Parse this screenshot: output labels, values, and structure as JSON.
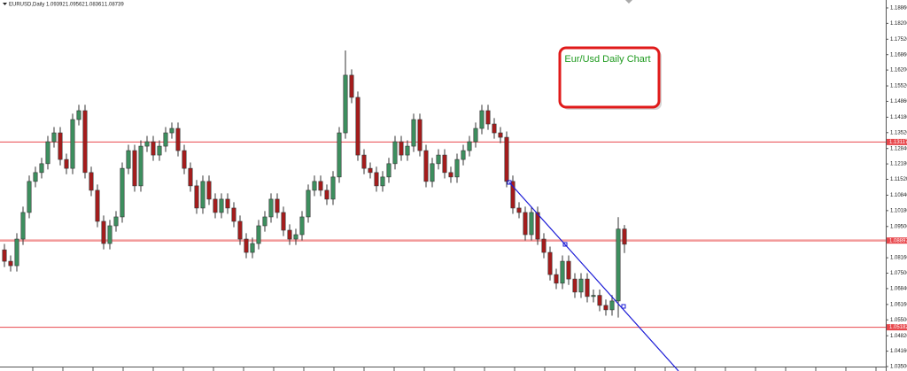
{
  "chart_data": {
    "type": "candlestick",
    "symbol": "EURUSD,Daily",
    "annotation": "Eur/Usd Daily Chart",
    "bull_color": "#3d8f5f",
    "bear_color": "#a51c1c",
    "ylim": [
      1.0331,
      1.192
    ],
    "yticks": [
      {
        "value": 1.1886,
        "label": "1.18860"
      },
      {
        "value": 1.182,
        "label": "1.18200"
      },
      {
        "value": 1.1752,
        "label": "1.17520"
      },
      {
        "value": 1.1686,
        "label": "1.16860"
      },
      {
        "value": 1.162,
        "label": "1.16200"
      },
      {
        "value": 1.1552,
        "label": "1.15520"
      },
      {
        "value": 1.1486,
        "label": "1.14860"
      },
      {
        "value": 1.1418,
        "label": "1.14180"
      },
      {
        "value": 1.1352,
        "label": "1.13520"
      },
      {
        "value": 1.1284,
        "label": "1.12840"
      },
      {
        "value": 1.1218,
        "label": "1.12180"
      },
      {
        "value": 1.1152,
        "label": "1.11520"
      },
      {
        "value": 1.1084,
        "label": "1.10840"
      },
      {
        "value": 1.1018,
        "label": "1.10180"
      },
      {
        "value": 1.095,
        "label": "1.09500"
      },
      {
        "value": 1.0816,
        "label": "1.08160"
      },
      {
        "value": 1.075,
        "label": "1.07500"
      },
      {
        "value": 1.0684,
        "label": "1.06840"
      },
      {
        "value": 1.0616,
        "label": "1.06160"
      },
      {
        "value": 1.055,
        "label": "1.05500"
      },
      {
        "value": 1.0482,
        "label": "1.04820"
      },
      {
        "value": 1.0416,
        "label": "1.04160"
      },
      {
        "value": 1.035,
        "label": "1.03500"
      }
    ],
    "levels": [
      {
        "value": 1.13117,
        "color": "#e8474c"
      },
      {
        "value": 1.08897,
        "color": "#f29a9a"
      },
      {
        "value": 1.05182,
        "color": "#e8474c"
      }
    ],
    "open": [
      1.085,
      1.0801,
      1.0782,
      1.0896,
      1.101,
      1.1143,
      1.1181,
      1.1219,
      1.1313,
      1.1351,
      1.1237,
      1.1199,
      1.1408,
      1.1446,
      1.1181,
      1.1105,
      1.0972,
      1.0877,
      1.0953,
      1.0991,
      1.1199,
      1.1275,
      1.1124,
      1.1294,
      1.1313,
      1.1256,
      1.1294,
      1.1351,
      1.137,
      1.1275,
      1.1199,
      1.1124,
      1.1029,
      1.1143,
      1.1067,
      1.101,
      1.1067,
      1.1029,
      1.0972,
      1.0896,
      1.0839,
      1.0877,
      1.0953,
      1.0991,
      1.1067,
      1.101,
      1.0934,
      1.0896,
      1.0915,
      1.0991,
      1.1105,
      1.1143,
      1.1105,
      1.1067,
      1.1162,
      1.1351,
      1.1598,
      1.1503,
      1.1256,
      1.1199,
      1.1181,
      1.1124,
      1.1162,
      1.1219,
      1.1313,
      1.1256,
      1.1294,
      1.1408,
      1.1275,
      1.1143,
      1.1219,
      1.1256,
      1.1181,
      1.1162,
      1.1237,
      1.1275,
      1.1313,
      1.137,
      1.1446,
      1.1389,
      1.1351,
      1.1332,
      1.1143,
      1.1029,
      1.101,
      1.0915,
      1.101,
      1.0896,
      1.0839,
      1.0744,
      1.0707,
      1.0801,
      1.0725,
      1.0669,
      1.0725,
      1.065,
      1.0655,
      1.0612,
      1.0593,
      1.0631,
      1.09392
    ],
    "high": [
      1.0875,
      1.0826,
      1.0921,
      1.1035,
      1.1168,
      1.1206,
      1.1244,
      1.1338,
      1.1376,
      1.1376,
      1.1262,
      1.1433,
      1.1471,
      1.1471,
      1.1206,
      1.113,
      1.0997,
      1.0978,
      1.1016,
      1.1224,
      1.13,
      1.13,
      1.1319,
      1.1338,
      1.1338,
      1.1319,
      1.1376,
      1.1395,
      1.1395,
      1.13,
      1.1224,
      1.1149,
      1.1168,
      1.1168,
      1.1092,
      1.1092,
      1.1092,
      1.1054,
      1.0997,
      1.0921,
      1.0902,
      1.0978,
      1.1016,
      1.1092,
      1.1092,
      1.1035,
      1.0959,
      1.094,
      1.1016,
      1.113,
      1.1168,
      1.1168,
      1.113,
      1.1187,
      1.1376,
      1.1704,
      1.1623,
      1.1528,
      1.1281,
      1.1224,
      1.1206,
      1.1187,
      1.1244,
      1.1338,
      1.1338,
      1.1319,
      1.1433,
      1.1433,
      1.13,
      1.1244,
      1.1281,
      1.1281,
      1.1206,
      1.1262,
      1.13,
      1.1338,
      1.1395,
      1.1471,
      1.1471,
      1.1414,
      1.1376,
      1.1357,
      1.1168,
      1.1054,
      1.1035,
      1.1035,
      1.1035,
      1.0921,
      1.0864,
      1.0769,
      1.0826,
      1.0826,
      1.075,
      1.075,
      1.075,
      1.068,
      1.068,
      1.0637,
      1.0656,
      1.099,
      1.09562
    ],
    "low": [
      1.0776,
      1.0757,
      1.0757,
      1.0871,
      1.0985,
      1.1118,
      1.1156,
      1.1194,
      1.1288,
      1.1212,
      1.1174,
      1.1174,
      1.1383,
      1.1156,
      1.108,
      1.0947,
      1.0852,
      1.0852,
      1.0928,
      1.0966,
      1.1174,
      1.1099,
      1.1099,
      1.1269,
      1.1231,
      1.1231,
      1.1269,
      1.1326,
      1.125,
      1.1174,
      1.1099,
      1.1004,
      1.1004,
      1.1042,
      1.0985,
      1.0985,
      1.1004,
      1.0947,
      1.0871,
      1.0814,
      1.0814,
      1.0852,
      1.0928,
      1.0966,
      1.0985,
      1.0909,
      1.0871,
      1.0871,
      1.089,
      1.0966,
      1.108,
      1.108,
      1.1042,
      1.1042,
      1.1137,
      1.1326,
      1.1478,
      1.1231,
      1.1174,
      1.1156,
      1.1099,
      1.1099,
      1.1137,
      1.1194,
      1.1231,
      1.1231,
      1.1269,
      1.125,
      1.1118,
      1.1118,
      1.1194,
      1.1156,
      1.1137,
      1.1137,
      1.1212,
      1.125,
      1.1288,
      1.1345,
      1.1364,
      1.1326,
      1.1307,
      1.1118,
      1.1004,
      1.0985,
      1.089,
      1.089,
      1.0871,
      1.0814,
      1.0719,
      1.0682,
      1.0682,
      1.07,
      1.0644,
      1.0644,
      1.0625,
      1.0625,
      1.0587,
      1.0568,
      1.0568,
      1.056,
      1.08361
    ],
    "close": [
      1.0801,
      1.0782,
      1.0896,
      1.101,
      1.1143,
      1.1181,
      1.1219,
      1.1313,
      1.1351,
      1.1237,
      1.1199,
      1.1408,
      1.1446,
      1.1181,
      1.1105,
      1.0972,
      1.0877,
      1.0953,
      1.0991,
      1.1199,
      1.1275,
      1.1124,
      1.1294,
      1.1313,
      1.1256,
      1.1294,
      1.1351,
      1.137,
      1.1275,
      1.1199,
      1.1124,
      1.1029,
      1.1143,
      1.1067,
      1.101,
      1.1067,
      1.1029,
      1.0972,
      1.0896,
      1.0839,
      1.0877,
      1.0953,
      1.0991,
      1.1067,
      1.101,
      1.0934,
      1.0896,
      1.0915,
      1.0991,
      1.1105,
      1.1143,
      1.1105,
      1.1067,
      1.1162,
      1.1351,
      1.1598,
      1.1503,
      1.1256,
      1.1199,
      1.1181,
      1.1124,
      1.1162,
      1.1219,
      1.1313,
      1.1256,
      1.1294,
      1.1408,
      1.1275,
      1.1143,
      1.1219,
      1.1256,
      1.1181,
      1.1162,
      1.1237,
      1.1275,
      1.1313,
      1.137,
      1.1446,
      1.1389,
      1.1351,
      1.1332,
      1.1143,
      1.1029,
      1.101,
      1.0915,
      1.101,
      1.0896,
      1.0839,
      1.0744,
      1.0707,
      1.0801,
      1.0725,
      1.0669,
      1.0725,
      1.065,
      1.0655,
      1.0612,
      1.0593,
      1.0631,
      1.0939,
      1.08739
    ]
  }
}
